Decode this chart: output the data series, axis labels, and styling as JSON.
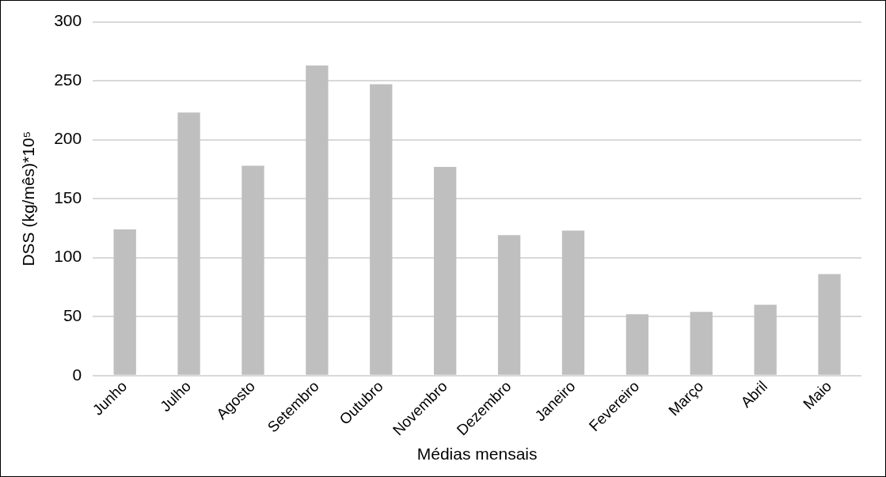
{
  "chart_data": {
    "type": "bar",
    "xlabel": "Médias mensais",
    "ylabel": "DSS (kg/mês)*10⁵",
    "categories": [
      "Junho",
      "Julho",
      "Agosto",
      "Setembro",
      "Outubro",
      "Novembro",
      "Dezembro",
      "Janeiro",
      "Fevereiro",
      "Março",
      "Abril",
      "Maio"
    ],
    "values": [
      124,
      223,
      178,
      263,
      247,
      177,
      119,
      123,
      52,
      54,
      60,
      86
    ],
    "color": "#bfbfbf",
    "ylim": [
      0,
      300
    ],
    "yticks": [
      0,
      50,
      100,
      150,
      200,
      250,
      300
    ],
    "grid": "y",
    "legend": false
  }
}
